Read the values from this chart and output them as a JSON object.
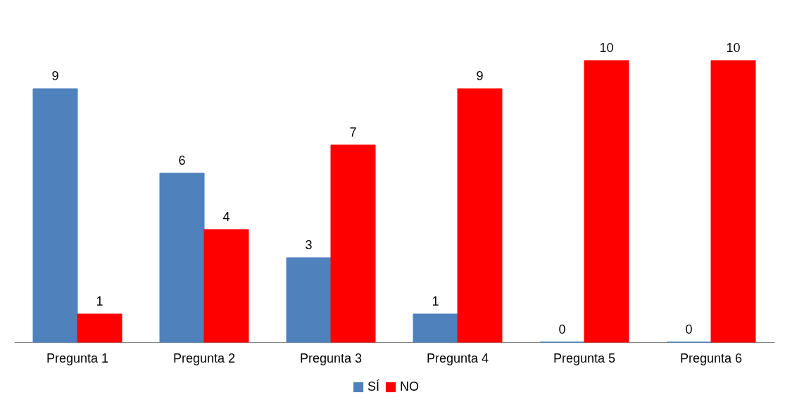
{
  "chart_data": {
    "type": "bar",
    "categories": [
      "Pregunta 1",
      "Pregunta 2",
      "Pregunta 3",
      "Pregunta 4",
      "Pregunta 5",
      "Pregunta 6"
    ],
    "series": [
      {
        "name": "SÍ",
        "color": "#4f81bd",
        "values": [
          9,
          6,
          3,
          1,
          0,
          0
        ]
      },
      {
        "name": "NO",
        "color": "#ff0000",
        "values": [
          1,
          4,
          7,
          9,
          10,
          10
        ]
      }
    ],
    "data_labels": true,
    "legend": "bottom",
    "grid": false,
    "tick_labels": "x"
  }
}
